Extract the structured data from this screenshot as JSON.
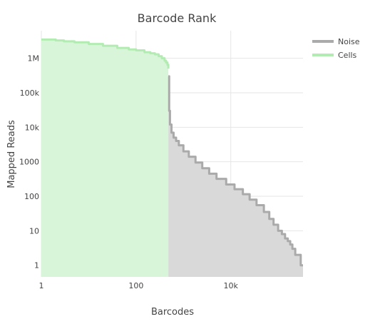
{
  "chart_data": {
    "type": "area",
    "title": "Barcode Rank",
    "xlabel": "Barcodes",
    "ylabel": "Mapped Reads",
    "x_scale": "log",
    "y_scale": "log",
    "xlim": [
      1,
      335000
    ],
    "ylim": [
      0.46,
      6300000
    ],
    "grid": true,
    "legend_position": "top-right",
    "x_ticks": [
      {
        "value": 1,
        "label": "1"
      },
      {
        "value": 100,
        "label": "100"
      },
      {
        "value": 10000,
        "label": "10k"
      }
    ],
    "y_ticks": [
      {
        "value": 1,
        "label": "1"
      },
      {
        "value": 10,
        "label": "10"
      },
      {
        "value": 100,
        "label": "100"
      },
      {
        "value": 1000,
        "label": "1000"
      },
      {
        "value": 10000,
        "label": "10k"
      },
      {
        "value": 100000,
        "label": "100k"
      },
      {
        "value": 1000000,
        "label": "1M"
      }
    ],
    "series": [
      {
        "name": "Noise",
        "color": "#aaaaaa",
        "fill": "#d9d9d9",
        "x": [
          480,
          500,
          520,
          560,
          620,
          700,
          800,
          1000,
          1300,
          1800,
          2500,
          3500,
          5000,
          8000,
          12000,
          18000,
          25000,
          35000,
          50000,
          65000,
          80000,
          100000,
          120000,
          140000,
          160000,
          180000,
          200000,
          230000,
          260000,
          300000,
          335000
        ],
        "values": [
          300000,
          30000,
          12000,
          7000,
          5000,
          4000,
          3000,
          2000,
          1400,
          950,
          650,
          450,
          320,
          220,
          160,
          115,
          80,
          55,
          35,
          22,
          15,
          10,
          8,
          6,
          5,
          4,
          3,
          2,
          2,
          1,
          1
        ]
      },
      {
        "name": "Cells",
        "color": "#b3ecb3",
        "fill": "#d9f5d9",
        "x": [
          1,
          2,
          3,
          5,
          10,
          20,
          40,
          70,
          100,
          150,
          200,
          250,
          300,
          350,
          400,
          430,
          460,
          480
        ],
        "values": [
          3500000,
          3300000,
          3100000,
          2900000,
          2600000,
          2300000,
          2000000,
          1800000,
          1700000,
          1500000,
          1400000,
          1300000,
          1150000,
          1000000,
          850000,
          750000,
          650000,
          500000
        ]
      }
    ]
  }
}
